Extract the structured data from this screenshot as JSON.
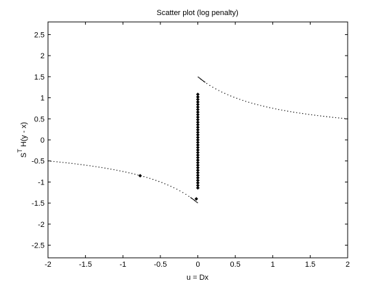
{
  "chart_data": {
    "type": "scatter",
    "title": "Scatter plot (log penalty)",
    "xlabel": "u = Dx",
    "ylabel_main": "S",
    "ylabel_sup": "T",
    "ylabel_rest": " H(y - x)",
    "xlim": [
      -2,
      2
    ],
    "ylim": [
      -2.8,
      2.8
    ],
    "grid": false,
    "legend": "none",
    "colors": {
      "axes": "#000000",
      "points": "#000000",
      "background": "#ffffff"
    },
    "x_ticks": [
      -2,
      -1.5,
      -1,
      -0.5,
      0,
      0.5,
      1,
      1.5,
      2
    ],
    "x_tick_labels": [
      "-2",
      "-1.5",
      "-1",
      "-0.5",
      "0",
      "0.5",
      "1",
      "1.5",
      "2"
    ],
    "y_ticks": [
      2.5,
      2,
      1.5,
      1,
      0.5,
      0,
      -0.5,
      -1,
      -1.5,
      -2,
      -2.5
    ],
    "y_tick_labels": [
      "2.5",
      "2",
      "1.5",
      "1",
      "0.5",
      "0",
      "-0.5",
      "-1",
      "-1.5",
      "-2",
      "-2.5"
    ],
    "series": [
      {
        "style": "dotted-curve",
        "function": "sign(u) * 1.5 / (1 + |u|)",
        "x_range": [
          -2,
          2
        ],
        "y_endpoints": {
          "left": -0.5,
          "right": 0.5,
          "near_zero_pos": 1.5,
          "near_zero_neg": -1.5
        }
      },
      {
        "style": "markers",
        "points": [
          {
            "x": -0.77,
            "y": -0.85
          },
          {
            "x": -0.02,
            "y": -1.4
          },
          {
            "x": 0.0,
            "y": 1.08
          },
          {
            "x": 0.0,
            "y": 1.02
          },
          {
            "x": 0.0,
            "y": 0.96
          },
          {
            "x": 0.0,
            "y": 0.9
          },
          {
            "x": 0.0,
            "y": 0.84
          },
          {
            "x": 0.0,
            "y": 0.78
          },
          {
            "x": 0.0,
            "y": 0.72
          },
          {
            "x": 0.0,
            "y": 0.66
          },
          {
            "x": 0.0,
            "y": 0.6
          },
          {
            "x": 0.0,
            "y": 0.54
          },
          {
            "x": 0.0,
            "y": 0.48
          },
          {
            "x": 0.0,
            "y": 0.42
          },
          {
            "x": 0.0,
            "y": 0.36
          },
          {
            "x": 0.0,
            "y": 0.3
          },
          {
            "x": 0.0,
            "y": 0.24
          },
          {
            "x": 0.0,
            "y": 0.18
          },
          {
            "x": 0.0,
            "y": 0.12
          },
          {
            "x": 0.0,
            "y": 0.06
          },
          {
            "x": 0.0,
            "y": 0.0
          },
          {
            "x": 0.0,
            "y": -0.06
          },
          {
            "x": 0.0,
            "y": -0.12
          },
          {
            "x": 0.0,
            "y": -0.18
          },
          {
            "x": 0.0,
            "y": -0.24
          },
          {
            "x": 0.0,
            "y": -0.3
          },
          {
            "x": 0.0,
            "y": -0.36
          },
          {
            "x": 0.0,
            "y": -0.42
          },
          {
            "x": 0.0,
            "y": -0.48
          },
          {
            "x": 0.0,
            "y": -0.54
          },
          {
            "x": 0.0,
            "y": -0.6
          },
          {
            "x": 0.0,
            "y": -0.66
          },
          {
            "x": 0.0,
            "y": -0.72
          },
          {
            "x": 0.0,
            "y": -0.78
          },
          {
            "x": 0.0,
            "y": -0.84
          },
          {
            "x": 0.0,
            "y": -0.9
          },
          {
            "x": 0.0,
            "y": -0.96
          },
          {
            "x": 0.0,
            "y": -1.02
          },
          {
            "x": 0.0,
            "y": -1.08
          },
          {
            "x": 0.0,
            "y": -1.14
          }
        ]
      }
    ]
  }
}
